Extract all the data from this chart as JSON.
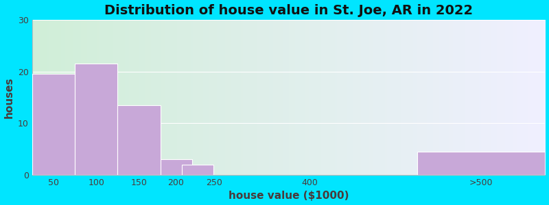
{
  "title": "Distribution of house value in St. Joe, AR in 2022",
  "xlabel": "house value ($1000)",
  "ylabel": "houses",
  "tick_labels": [
    "50",
    "100",
    "150",
    "200",
    "250",
    "400",
    ">500"
  ],
  "bar_lefts": [
    0,
    50,
    100,
    150,
    175,
    300,
    450
  ],
  "bar_widths": [
    50,
    50,
    50,
    37,
    37,
    0,
    150
  ],
  "bar_values": [
    19.5,
    21.5,
    13.5,
    3.0,
    2.0,
    0,
    4.5
  ],
  "bar_color": "#c8a8d8",
  "ylim": [
    0,
    30
  ],
  "yticks": [
    0,
    10,
    20,
    30
  ],
  "xlim": [
    0,
    600
  ],
  "background_outer": "#00e5ff",
  "background_inner_left": "#d0eed8",
  "background_inner_right": "#f0f0ff",
  "title_fontsize": 14,
  "axis_label_fontsize": 11,
  "tick_fontsize": 9,
  "title_color": "#111111",
  "label_color": "#4a3a3a"
}
